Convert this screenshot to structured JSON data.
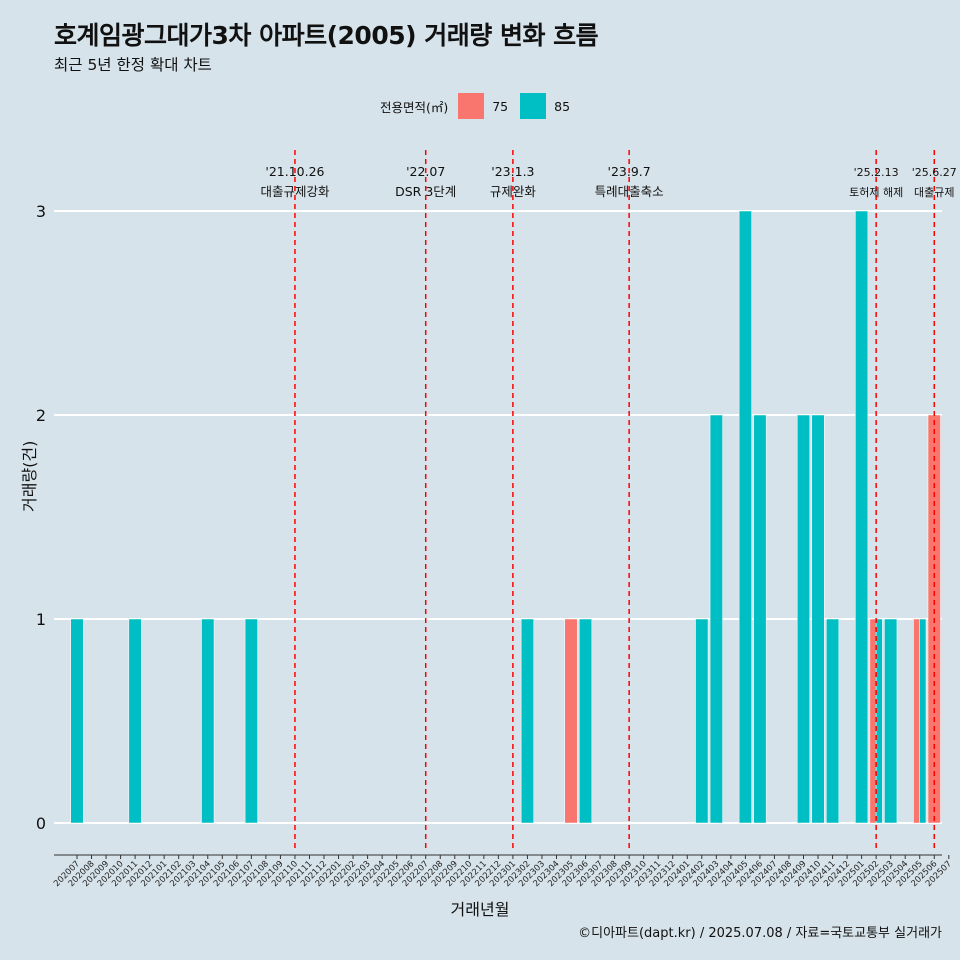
{
  "chart_data": {
    "type": "bar",
    "title": "호계임광그대가3차 아파트(2005) 거래량 변화 흐름",
    "subtitle": "최근 5년 한정 확대 차트",
    "xlabel": "거래년월",
    "ylabel": "거래량(건)",
    "caption": "©디아파트(dapt.kr) / 2025.07.08 / 자료=국토교통부 실거래가",
    "legend_title": "전용면적(㎡)",
    "legend_position": "top",
    "ylim": [
      0,
      3
    ],
    "yticks": [
      "0",
      "1",
      "2",
      "3"
    ],
    "grid": true,
    "categories": [
      "202007",
      "202008",
      "202009",
      "202010",
      "202011",
      "202012",
      "202101",
      "202102",
      "202103",
      "202104",
      "202105",
      "202106",
      "202107",
      "202108",
      "202109",
      "202110",
      "202111",
      "202112",
      "202201",
      "202202",
      "202203",
      "202204",
      "202205",
      "202206",
      "202207",
      "202208",
      "202209",
      "202210",
      "202211",
      "202212",
      "202301",
      "202302",
      "202303",
      "202304",
      "202305",
      "202306",
      "202307",
      "202308",
      "202309",
      "202310",
      "202311",
      "202312",
      "202401",
      "202402",
      "202403",
      "202404",
      "202405",
      "202406",
      "202407",
      "202408",
      "202409",
      "202410",
      "202411",
      "202412",
      "202501",
      "202502",
      "202503",
      "202504",
      "202505",
      "202506",
      "202507"
    ],
    "series": [
      {
        "name": "75",
        "color": "#f8766d",
        "values": [
          0,
          0,
          0,
          0,
          0,
          0,
          0,
          0,
          0,
          0,
          0,
          0,
          0,
          0,
          0,
          0,
          0,
          0,
          0,
          0,
          0,
          0,
          0,
          0,
          0,
          0,
          0,
          0,
          0,
          0,
          0,
          0,
          0,
          0,
          1,
          0,
          0,
          0,
          0,
          0,
          0,
          0,
          0,
          0,
          0,
          0,
          0,
          0,
          0,
          0,
          0,
          0,
          0,
          0,
          0,
          1,
          0,
          0,
          1,
          2,
          0
        ]
      },
      {
        "name": "85",
        "color": "#00bfc4",
        "values": [
          1,
          0,
          0,
          0,
          1,
          0,
          0,
          0,
          0,
          1,
          0,
          0,
          1,
          0,
          0,
          0,
          0,
          0,
          0,
          0,
          0,
          0,
          0,
          0,
          0,
          0,
          0,
          0,
          0,
          0,
          0,
          1,
          0,
          0,
          0,
          1,
          0,
          0,
          0,
          0,
          0,
          0,
          0,
          1,
          2,
          0,
          3,
          2,
          0,
          0,
          2,
          2,
          1,
          0,
          3,
          1,
          1,
          0,
          1,
          0,
          0
        ]
      }
    ],
    "events": [
      {
        "date_label": "'21.10.26",
        "label": "대출규제강화",
        "x": "202110"
      },
      {
        "date_label": "'22.07",
        "label": "DSR 3단계",
        "x": "202207"
      },
      {
        "date_label": "'23.1.3",
        "label": "규제완화",
        "x": "202301"
      },
      {
        "date_label": "'23.9.7",
        "label": "특례대출축소",
        "x": "202309"
      },
      {
        "date_label": "'25.2.13",
        "label": "토허제 해제",
        "x": "202502"
      },
      {
        "date_label": "'25.6.27",
        "label": "대출규제",
        "x": "202506"
      }
    ],
    "event_line_color": "#ff0000"
  }
}
